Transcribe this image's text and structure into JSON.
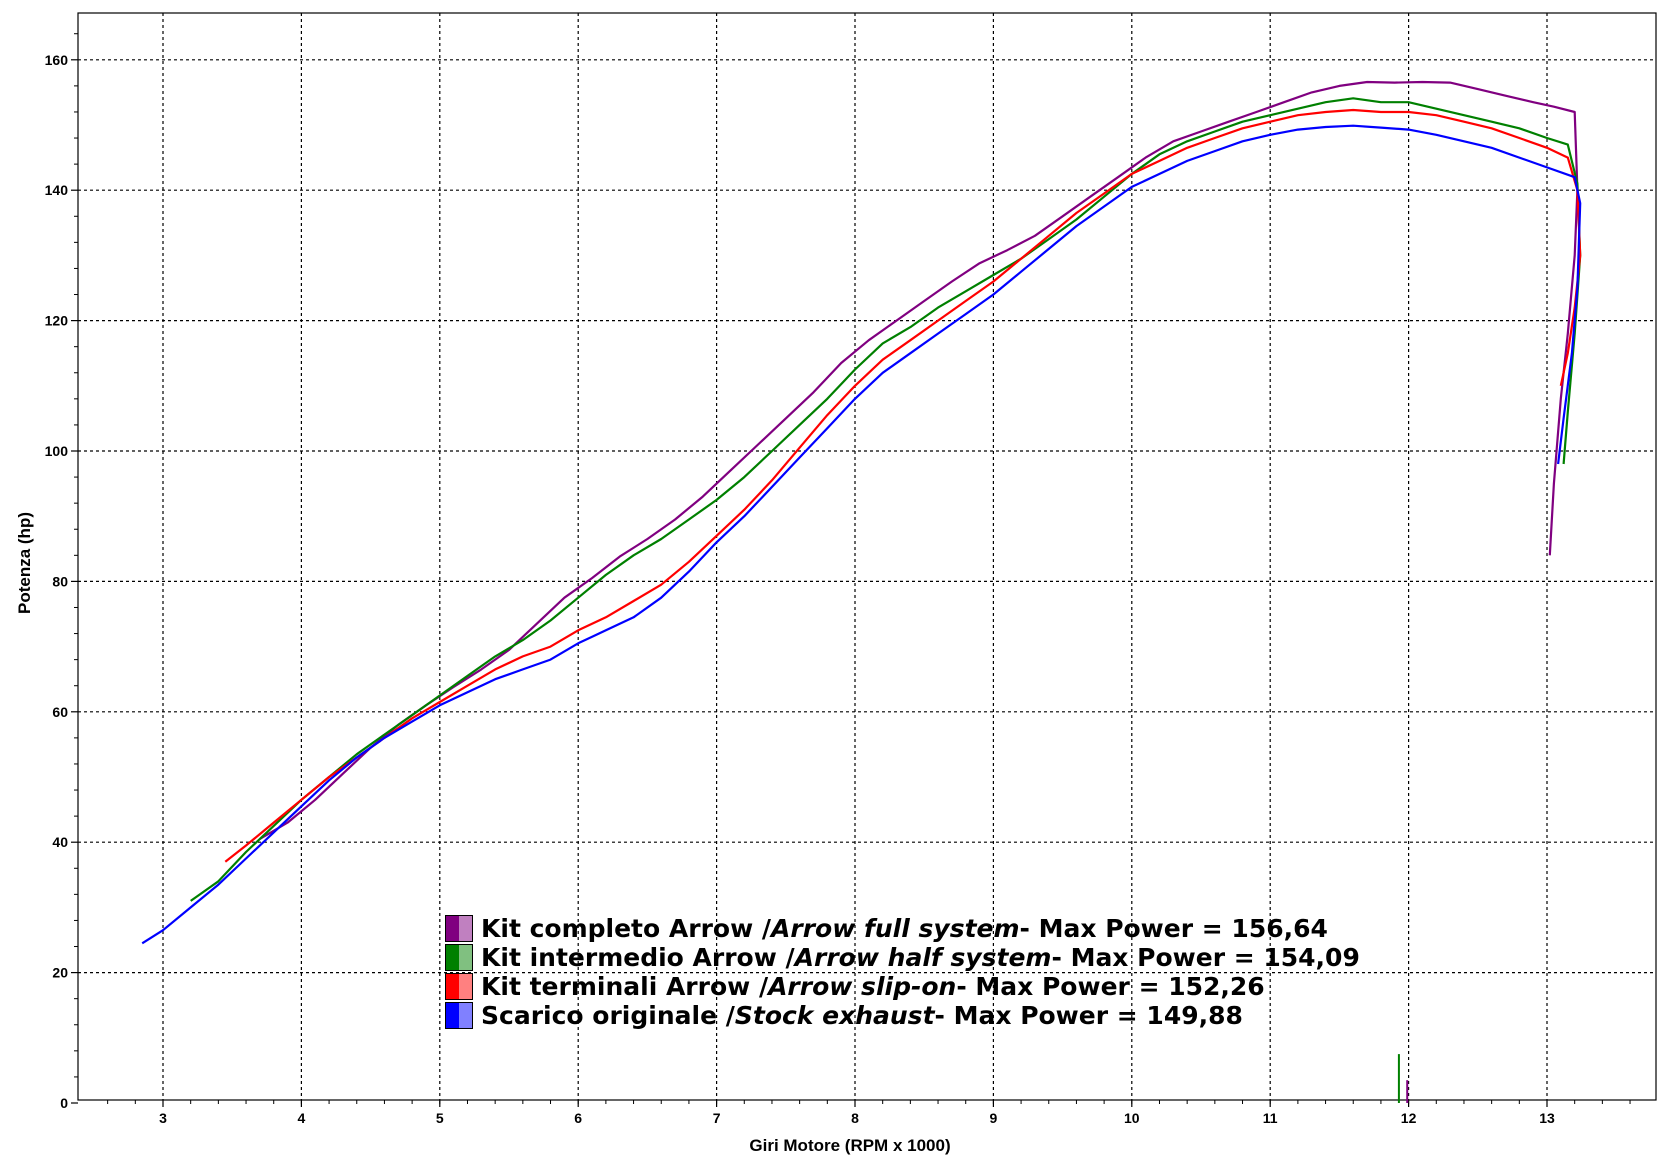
{
  "chart_data": {
    "type": "line",
    "xlabel": "Giri Motore (RPM x 1000)",
    "ylabel": "Potenza (hp)",
    "xlim": [
      2.5,
      13.9
    ],
    "ylim": [
      0,
      165
    ],
    "x_ticks": [
      "3",
      "4",
      "5",
      "6",
      "7",
      "8",
      "9",
      "10",
      "11",
      "12",
      "13"
    ],
    "y_ticks": [
      "0",
      "20",
      "40",
      "60",
      "80",
      "100",
      "120",
      "140",
      "160"
    ],
    "grid": true,
    "legend_position": "bottom-center",
    "series": [
      {
        "name": "Kit completo Arrow / Arrow full system - Max Power = 156,64",
        "label_main": "Kit completo Arrow / ",
        "label_italic": "Arrow full system",
        "label_tail": " - Max Power = 156,64",
        "color": "#800080",
        "swatch_light": "#c080c0",
        "x": [
          3.7,
          3.9,
          4.1,
          4.3,
          4.5,
          4.7,
          4.9,
          5.1,
          5.3,
          5.5,
          5.7,
          5.9,
          6.1,
          6.3,
          6.5,
          6.7,
          6.9,
          7.1,
          7.3,
          7.5,
          7.7,
          7.9,
          8.1,
          8.3,
          8.5,
          8.7,
          8.9,
          9.1,
          9.3,
          9.5,
          9.7,
          9.9,
          10.1,
          10.3,
          10.5,
          10.7,
          10.9,
          11.1,
          11.3,
          11.5,
          11.7,
          11.9,
          12.1,
          12.3,
          12.5,
          12.7,
          12.9,
          13.05,
          13.2,
          13.22,
          13.2,
          13.15,
          13.1,
          13.05,
          13.02
        ],
        "y": [
          40.5,
          43.0,
          46.5,
          50.5,
          54.5,
          58.0,
          61.0,
          63.8,
          66.5,
          69.5,
          73.5,
          77.5,
          80.5,
          83.8,
          86.5,
          89.5,
          93.0,
          97.0,
          101.0,
          105.0,
          109.0,
          113.5,
          117.0,
          120.0,
          123.0,
          126.0,
          128.8,
          130.8,
          133.0,
          136.0,
          139.0,
          142.0,
          145.0,
          147.5,
          149.0,
          150.5,
          152.0,
          153.5,
          155.0,
          156.0,
          156.6,
          156.5,
          156.6,
          156.5,
          155.5,
          154.5,
          153.5,
          152.8,
          152.0,
          140.0,
          130.0,
          118.0,
          108.0,
          95.0,
          84.0
        ]
      },
      {
        "name": "Kit intermedio Arrow / Arrow half system - Max Power = 154,09",
        "label_main": "Kit intermedio Arrow / ",
        "label_italic": "Arrow half system",
        "label_tail": " - Max Power = 154,09",
        "color": "#008000",
        "swatch_light": "#80c080",
        "x": [
          3.2,
          3.4,
          3.6,
          3.8,
          4.0,
          4.2,
          4.4,
          4.6,
          4.8,
          5.0,
          5.2,
          5.4,
          5.6,
          5.8,
          6.0,
          6.2,
          6.4,
          6.6,
          6.8,
          7.0,
          7.2,
          7.4,
          7.6,
          7.8,
          8.0,
          8.2,
          8.4,
          8.6,
          8.8,
          9.0,
          9.2,
          9.4,
          9.6,
          9.8,
          10.0,
          10.2,
          10.4,
          10.6,
          10.8,
          11.0,
          11.2,
          11.4,
          11.6,
          11.8,
          12.0,
          12.2,
          12.4,
          12.6,
          12.8,
          13.0,
          13.15,
          13.22,
          13.24,
          13.2,
          13.15,
          13.12
        ],
        "y": [
          31.0,
          34.0,
          38.5,
          42.5,
          46.5,
          50.0,
          53.5,
          56.5,
          59.5,
          62.5,
          65.5,
          68.5,
          71.0,
          74.0,
          77.5,
          81.0,
          84.0,
          86.5,
          89.5,
          92.5,
          96.0,
          100.0,
          104.0,
          108.0,
          112.5,
          116.5,
          119.0,
          122.0,
          124.5,
          127.0,
          129.5,
          132.5,
          135.5,
          139.0,
          142.5,
          145.5,
          147.5,
          149.0,
          150.5,
          151.5,
          152.5,
          153.5,
          154.1,
          153.5,
          153.5,
          152.5,
          151.5,
          150.5,
          149.5,
          148.0,
          147.0,
          141.0,
          130.0,
          118.0,
          106.0,
          98.0
        ]
      },
      {
        "name": "Kit terminali Arrow / Arrow slip-on - Max Power = 152,26",
        "label_main": "Kit terminali Arrow / ",
        "label_italic": "Arrow slip-on",
        "label_tail": " - Max Power = 152,26",
        "color": "#ff0000",
        "swatch_light": "#ff8080",
        "x": [
          3.45,
          3.6,
          3.8,
          4.0,
          4.2,
          4.4,
          4.6,
          4.8,
          5.0,
          5.2,
          5.4,
          5.6,
          5.8,
          6.0,
          6.2,
          6.4,
          6.6,
          6.8,
          7.0,
          7.2,
          7.4,
          7.6,
          7.8,
          8.0,
          8.2,
          8.4,
          8.6,
          8.8,
          9.0,
          9.2,
          9.4,
          9.6,
          9.8,
          10.0,
          10.2,
          10.4,
          10.6,
          10.8,
          11.0,
          11.2,
          11.4,
          11.6,
          11.8,
          12.0,
          12.2,
          12.4,
          12.6,
          12.8,
          13.0,
          13.15,
          13.22,
          13.24,
          13.2,
          13.15,
          13.1
        ],
        "y": [
          37.0,
          39.5,
          43.0,
          46.5,
          50.0,
          53.0,
          56.0,
          59.0,
          61.5,
          64.0,
          66.5,
          68.5,
          70.0,
          72.5,
          74.5,
          77.0,
          79.5,
          83.0,
          87.0,
          91.0,
          95.5,
          100.5,
          105.5,
          110.0,
          114.0,
          117.0,
          120.0,
          123.0,
          126.0,
          129.5,
          133.0,
          136.5,
          139.5,
          142.5,
          144.5,
          146.5,
          148.0,
          149.5,
          150.5,
          151.5,
          152.0,
          152.3,
          152.0,
          152.0,
          151.5,
          150.5,
          149.5,
          148.0,
          146.5,
          145.0,
          140.0,
          130.0,
          122.0,
          115.0,
          110.0
        ]
      },
      {
        "name": "Scarico originale / Stock exhaust - Max Power = 149,88",
        "label_main": "Scarico originale / ",
        "label_italic": "Stock exhaust",
        "label_tail": " - Max Power = 149,88",
        "color": "#0000ff",
        "swatch_light": "#8080ff",
        "x": [
          2.85,
          3.0,
          3.2,
          3.4,
          3.6,
          3.8,
          4.0,
          4.2,
          4.4,
          4.6,
          4.8,
          5.0,
          5.2,
          5.4,
          5.6,
          5.8,
          6.0,
          6.2,
          6.4,
          6.6,
          6.8,
          7.0,
          7.2,
          7.4,
          7.6,
          7.8,
          8.0,
          8.2,
          8.4,
          8.6,
          8.8,
          9.0,
          9.2,
          9.4,
          9.6,
          9.8,
          10.0,
          10.2,
          10.4,
          10.6,
          10.8,
          11.0,
          11.2,
          11.4,
          11.6,
          11.8,
          12.0,
          12.2,
          12.4,
          12.6,
          12.8,
          13.0,
          13.2,
          13.24,
          13.22,
          13.18,
          13.12,
          13.08
        ],
        "y": [
          24.5,
          26.5,
          30.0,
          33.5,
          37.5,
          41.5,
          45.5,
          49.5,
          53.0,
          56.0,
          58.5,
          61.0,
          63.0,
          65.0,
          66.5,
          68.0,
          70.5,
          72.5,
          74.5,
          77.5,
          81.5,
          86.0,
          90.0,
          94.5,
          99.0,
          103.5,
          108.0,
          112.0,
          115.0,
          118.0,
          121.0,
          124.0,
          127.5,
          131.0,
          134.5,
          137.5,
          140.5,
          142.5,
          144.5,
          146.0,
          147.5,
          148.5,
          149.3,
          149.7,
          149.9,
          149.6,
          149.3,
          148.5,
          147.5,
          146.5,
          145.0,
          143.5,
          142.0,
          138.0,
          125.0,
          115.0,
          105.0,
          98.0
        ]
      }
    ],
    "spikes": [
      {
        "x": 11.93,
        "y_top": 7.5,
        "color": "#008000"
      },
      {
        "x": 11.99,
        "y_top": 3.5,
        "color": "#800080"
      }
    ]
  }
}
